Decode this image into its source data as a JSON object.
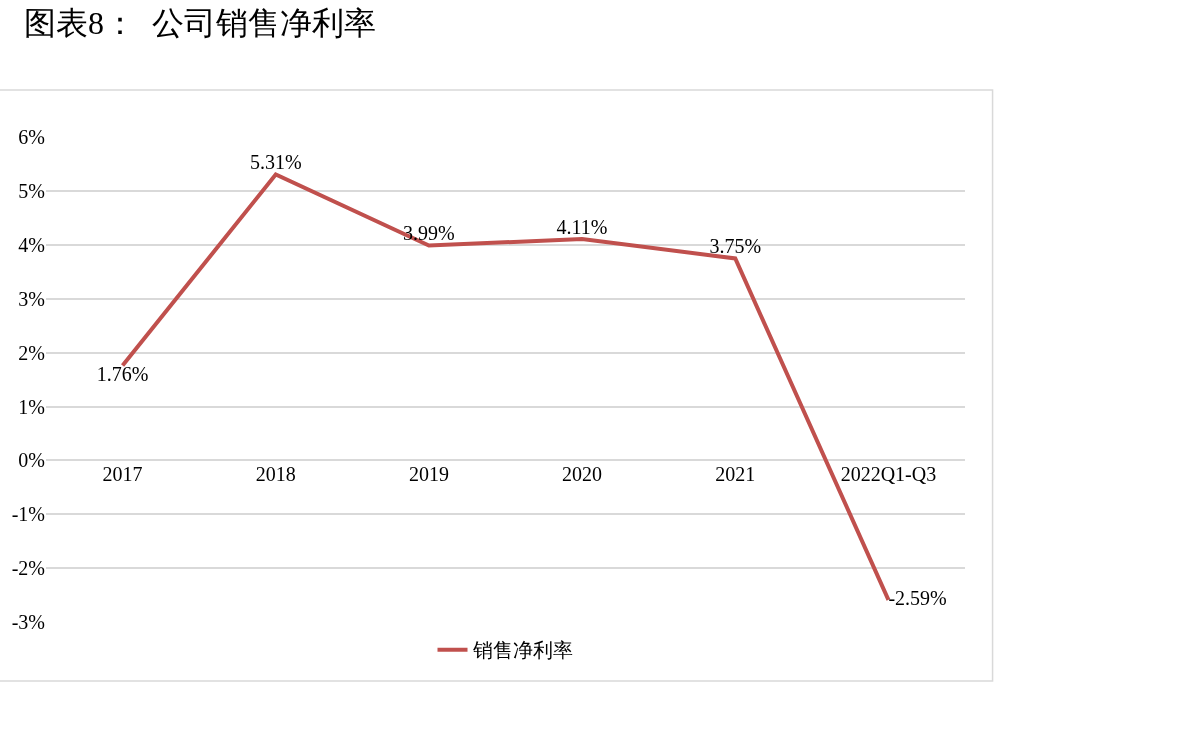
{
  "chart_data": {
    "type": "line",
    "title": "图表8：  公司销售净利率",
    "categories": [
      "2017",
      "2018",
      "2019",
      "2020",
      "2021",
      "2022Q1-Q3"
    ],
    "series": [
      {
        "name": "销售净利率",
        "color": "#c0504d",
        "values": [
          1.76,
          5.31,
          3.99,
          4.11,
          3.75,
          -2.59
        ]
      }
    ],
    "value_labels": [
      "1.76%",
      "5.31%",
      "3.99%",
      "4.11%",
      "3.75%",
      "-2.59%"
    ],
    "ylim": [
      -3,
      6
    ],
    "yticks": [
      {
        "value": -3,
        "label": "-3%"
      },
      {
        "value": -2,
        "label": "-2%"
      },
      {
        "value": -1,
        "label": "-1%"
      },
      {
        "value": 0,
        "label": "0%"
      },
      {
        "value": 1,
        "label": "1%"
      },
      {
        "value": 2,
        "label": "2%"
      },
      {
        "value": 3,
        "label": "3%"
      },
      {
        "value": 4,
        "label": "4%"
      },
      {
        "value": 5,
        "label": "5%"
      },
      {
        "value": 6,
        "label": "6%"
      }
    ],
    "grid": "y",
    "legend": "bottom",
    "marker": "none",
    "line_style": "solid"
  }
}
